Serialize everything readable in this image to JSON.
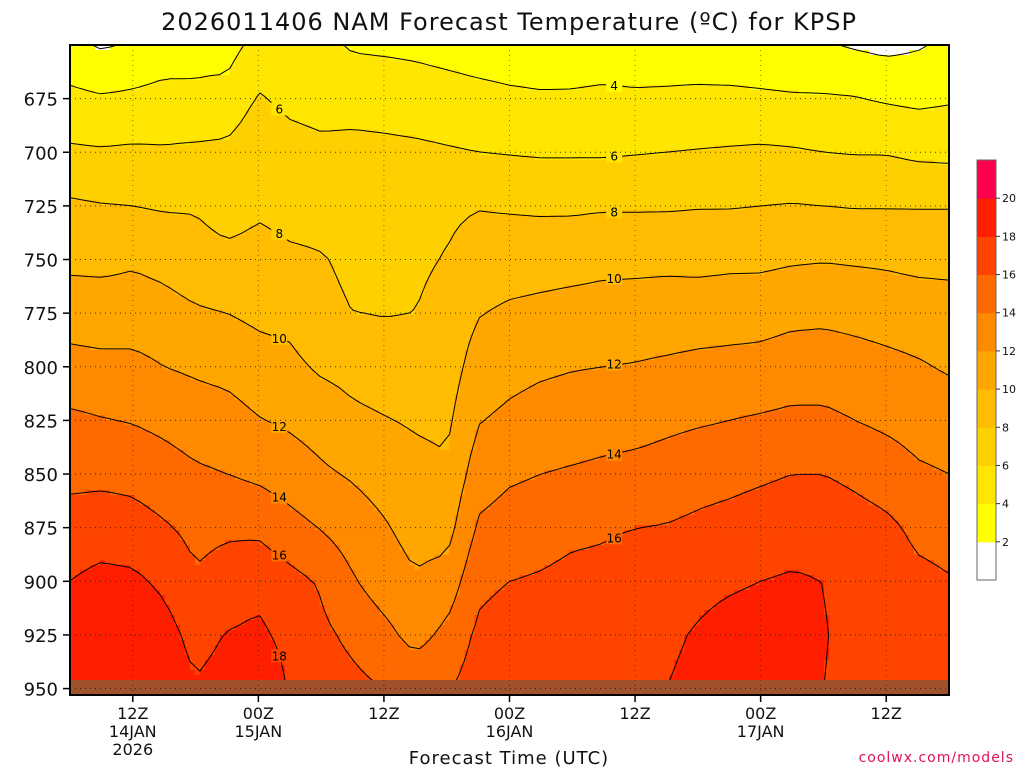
{
  "chart_data": {
    "type": "heatmap",
    "title": "2026011406 NAM Forecast Temperature (ºC) for KPSP",
    "xlabel": "Forecast Time (UTC)",
    "ylabel": "",
    "x_ticks": [
      {
        "hour": 6,
        "lines": [
          "12Z",
          "14JAN",
          "2026"
        ]
      },
      {
        "hour": 18,
        "lines": [
          "00Z",
          "15JAN"
        ]
      },
      {
        "hour": 30,
        "lines": [
          "12Z"
        ]
      },
      {
        "hour": 42,
        "lines": [
          "00Z",
          "16JAN"
        ]
      },
      {
        "hour": 54,
        "lines": [
          "12Z"
        ]
      },
      {
        "hour": 66,
        "lines": [
          "00Z",
          "17JAN"
        ]
      },
      {
        "hour": 78,
        "lines": [
          "12Z"
        ]
      }
    ],
    "xlim": [
      0,
      84
    ],
    "y_ticks": [
      675,
      700,
      725,
      750,
      775,
      800,
      825,
      850,
      875,
      900,
      925,
      950
    ],
    "ylim": [
      650,
      953
    ],
    "y_reversed": true,
    "grid": true,
    "colorbar": {
      "levels": [
        0,
        2,
        4,
        6,
        8,
        10,
        12,
        14,
        16,
        18,
        20,
        22
      ],
      "labels": [
        "2",
        "4",
        "6",
        "8",
        "10",
        "12",
        "14",
        "16",
        "18",
        "20"
      ],
      "colors": [
        "#ffffff",
        "#ffff00",
        "#ffe600",
        "#ffd000",
        "#ffbc00",
        "#ffa600",
        "#ff8a00",
        "#ff6a00",
        "#ff4400",
        "#ff1e00",
        "#ff004f"
      ]
    },
    "contour_levels": [
      2,
      4,
      6,
      8,
      10,
      12,
      14,
      16,
      18
    ],
    "ground": {
      "color": "#a0522d",
      "top_pressure": 946
    },
    "profile_pressures": [
      650,
      675,
      700,
      725,
      750,
      775,
      800,
      825,
      850,
      875,
      900,
      925,
      950
    ],
    "series": [
      {
        "hour": 0,
        "temps": [
          2.5,
          4.5,
          6.3,
          8.3,
          9.5,
          11.2,
          12.6,
          14.4,
          15.4,
          17.0,
          18.0,
          19.4,
          19.5
        ]
      },
      {
        "hour": 3,
        "temps": [
          1.8,
          4.2,
          6.2,
          8.1,
          9.5,
          11.0,
          12.5,
          14.1,
          15.5,
          17.1,
          18.5,
          19.6,
          20.0
        ]
      },
      {
        "hour": 6,
        "temps": [
          2.2,
          4.4,
          6.3,
          8.0,
          9.8,
          10.8,
          12.6,
          13.9,
          15.4,
          16.8,
          18.4,
          19.5,
          20.0
        ]
      },
      {
        "hour": 9,
        "temps": [
          2.8,
          4.7,
          6.2,
          7.8,
          9.5,
          10.6,
          12.0,
          13.5,
          14.9,
          16.2,
          17.6,
          18.8,
          19.5
        ]
      },
      {
        "hour": 12,
        "temps": [
          3.5,
          4.3,
          6.4,
          7.8,
          9.0,
          10.2,
          11.7,
          13.0,
          14.3,
          15.5,
          16.2,
          17.3,
          18.2
        ]
      },
      {
        "hour": 15,
        "temps": [
          3.3,
          4.6,
          6.5,
          7.0,
          8.6,
          10.0,
          11.4,
          12.8,
          14.0,
          15.7,
          16.8,
          18.1,
          18.8
        ]
      },
      {
        "hour": 18,
        "temps": [
          4.6,
          6.2,
          7.4,
          7.7,
          8.7,
          9.6,
          10.8,
          12.1,
          13.6,
          15.6,
          17.4,
          18.4,
          19.7
        ]
      },
      {
        "hour": 21,
        "temps": [
          4.6,
          5.5,
          6.8,
          7.4,
          8.3,
          9.4,
          10.5,
          11.7,
          13.0,
          14.7,
          16.6,
          17.4,
          17.8
        ]
      },
      {
        "hour": 24,
        "temps": [
          4.5,
          5.2,
          6.5,
          7.4,
          8.1,
          8.4,
          9.7,
          11.2,
          12.3,
          13.9,
          15.8,
          16.4,
          16.8
        ]
      },
      {
        "hour": 27,
        "temps": [
          3.8,
          5.2,
          6.6,
          7.2,
          7.7,
          8.0,
          9.4,
          10.4,
          11.8,
          13.0,
          14.2,
          15.6,
          16.5
        ]
      },
      {
        "hour": 30,
        "temps": [
          3.7,
          5.1,
          6.5,
          7.3,
          7.6,
          7.9,
          9.1,
          10.1,
          11.2,
          12.2,
          13.0,
          14.6,
          16.0
        ]
      },
      {
        "hour": 33,
        "temps": [
          3.6,
          4.9,
          6.4,
          7.3,
          7.7,
          8.0,
          8.8,
          9.8,
          10.6,
          11.3,
          12.2,
          13.3,
          15.5
        ]
      },
      {
        "hour": 36,
        "temps": [
          3.4,
          4.7,
          6.2,
          7.6,
          8.1,
          8.6,
          9.0,
          9.6,
          10.3,
          11.2,
          12.8,
          14.5,
          15.8
        ]
      },
      {
        "hour": 39,
        "temps": [
          3.2,
          4.5,
          6.0,
          7.9,
          9.0,
          9.9,
          10.9,
          11.9,
          13.0,
          14.3,
          15.5,
          16.4,
          17.0
        ]
      },
      {
        "hour": 42,
        "temps": [
          3.1,
          4.3,
          5.9,
          7.8,
          9.1,
          10.3,
          11.4,
          12.4,
          13.7,
          14.9,
          16.0,
          17.0,
          17.5
        ]
      },
      {
        "hour": 45,
        "temps": [
          3.0,
          4.2,
          5.8,
          7.7,
          9.2,
          10.5,
          11.7,
          12.8,
          14.0,
          15.2,
          16.2,
          17.2,
          17.8
        ]
      },
      {
        "hour": 48,
        "temps": [
          3.1,
          4.2,
          5.8,
          7.7,
          9.3,
          10.7,
          11.9,
          13.0,
          14.2,
          15.6,
          16.5,
          17.2,
          17.6
        ]
      },
      {
        "hour": 51,
        "temps": [
          3.2,
          4.3,
          5.8,
          7.8,
          9.5,
          10.8,
          12.0,
          13.2,
          14.4,
          15.8,
          16.5,
          17.3,
          17.8
        ]
      },
      {
        "hour": 54,
        "temps": [
          3.2,
          4.2,
          5.9,
          7.8,
          9.5,
          10.9,
          12.1,
          13.3,
          14.6,
          16.0,
          16.8,
          17.4,
          17.8
        ]
      },
      {
        "hour": 57,
        "temps": [
          3.0,
          4.3,
          6.0,
          7.8,
          9.6,
          10.9,
          12.3,
          13.6,
          14.8,
          16.1,
          17.0,
          17.6,
          18.0
        ]
      },
      {
        "hour": 60,
        "temps": [
          2.9,
          4.4,
          6.1,
          7.9,
          9.5,
          11.0,
          12.5,
          13.8,
          15.2,
          16.4,
          17.4,
          18.2,
          18.6
        ]
      },
      {
        "hour": 63,
        "temps": [
          2.8,
          4.4,
          6.2,
          7.9,
          9.6,
          11.1,
          12.6,
          14.0,
          15.4,
          16.7,
          17.7,
          18.8,
          19.5
        ]
      },
      {
        "hour": 66,
        "temps": [
          2.7,
          4.3,
          6.3,
          8.0,
          9.6,
          11.2,
          12.7,
          14.2,
          15.7,
          17.0,
          18.0,
          19.1,
          20.2
        ]
      },
      {
        "hour": 69,
        "temps": [
          2.5,
          4.2,
          6.2,
          8.1,
          9.8,
          11.5,
          13.0,
          14.4,
          16.0,
          17.2,
          18.2,
          18.6,
          18.6
        ]
      },
      {
        "hour": 72,
        "temps": [
          2.2,
          4.2,
          6.0,
          8.0,
          9.9,
          11.6,
          13.0,
          14.4,
          16.0,
          17.2,
          18.0,
          18.1,
          18.0
        ]
      },
      {
        "hour": 75,
        "temps": [
          1.8,
          4.1,
          5.9,
          7.9,
          9.8,
          11.4,
          12.8,
          14.0,
          15.6,
          16.8,
          17.4,
          17.5,
          17.5
        ]
      },
      {
        "hour": 78,
        "temps": [
          1.5,
          3.8,
          5.9,
          7.9,
          9.7,
          11.2,
          12.5,
          13.6,
          15.1,
          16.4,
          17.0,
          17.2,
          17.4
        ]
      },
      {
        "hour": 81,
        "temps": [
          1.8,
          3.6,
          5.6,
          7.9,
          9.5,
          11.0,
          12.2,
          13.2,
          14.3,
          15.6,
          16.4,
          16.9,
          17.2
        ]
      },
      {
        "hour": 84,
        "temps": [
          2.4,
          3.8,
          5.5,
          7.9,
          9.5,
          10.8,
          11.8,
          13.0,
          14.0,
          15.4,
          16.1,
          16.6,
          17.0
        ]
      }
    ]
  },
  "footer": {
    "credit": "coolwx.com/models"
  }
}
